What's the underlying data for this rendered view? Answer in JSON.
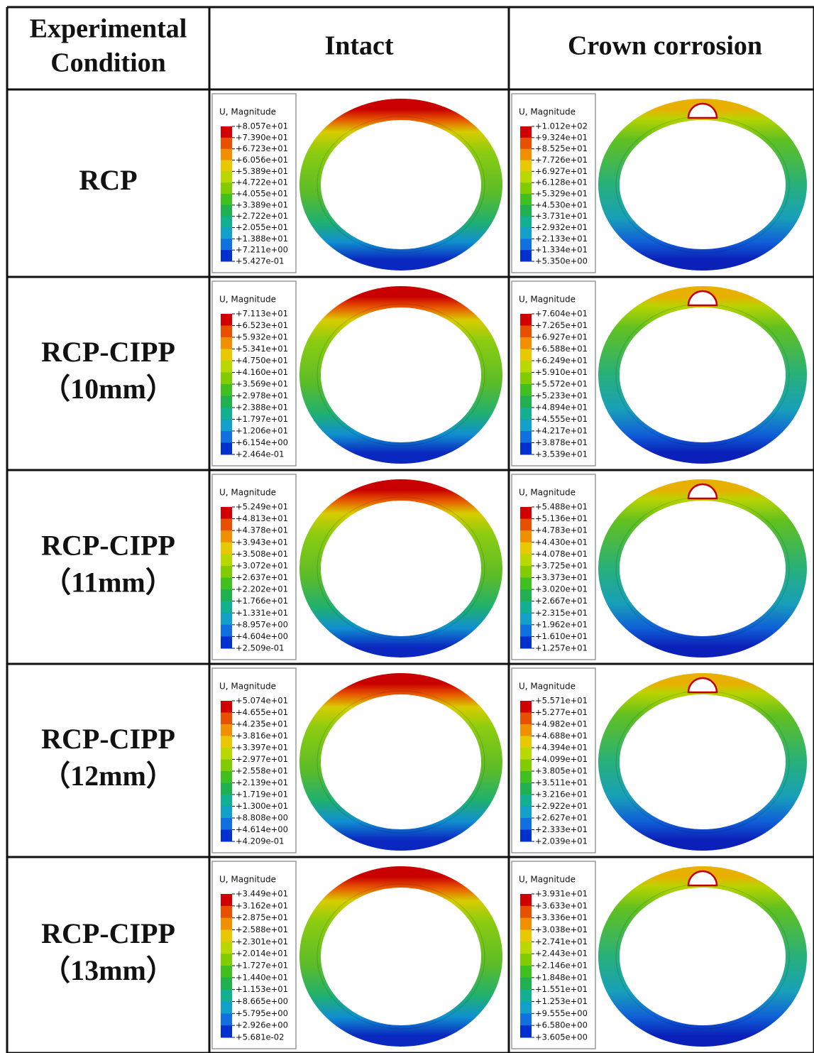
{
  "header": {
    "condition": [
      "Experimental",
      "Condition"
    ],
    "intact": "Intact",
    "crown": "Crown corrosion"
  },
  "rows": [
    {
      "label": [
        "RCP"
      ],
      "intact": {
        "title": "U, Magnitude",
        "values": [
          "+8.057e+01",
          "+7.390e+01",
          "+6.723e+01",
          "+6.056e+01",
          "+5.389e+01",
          "+4.722e+01",
          "+4.055e+01",
          "+3.389e+01",
          "+2.722e+01",
          "+2.055e+01",
          "+1.388e+01",
          "+7.211e+00",
          "+5.427e-01"
        ]
      },
      "crown": {
        "title": "U, Magnitude",
        "values": [
          "+1.012e+02",
          "+9.324e+01",
          "+8.525e+01",
          "+7.726e+01",
          "+6.927e+01",
          "+6.128e+01",
          "+5.329e+01",
          "+4.530e+01",
          "+3.731e+01",
          "+2.932e+01",
          "+2.133e+01",
          "+1.334e+01",
          "+5.350e+00"
        ]
      }
    },
    {
      "label": [
        "RCP-CIPP",
        "（10mm）"
      ],
      "intact": {
        "title": "U, Magnitude",
        "values": [
          "+7.113e+01",
          "+6.523e+01",
          "+5.932e+01",
          "+5.341e+01",
          "+4.750e+01",
          "+4.160e+01",
          "+3.569e+01",
          "+2.978e+01",
          "+2.388e+01",
          "+1.797e+01",
          "+1.206e+01",
          "+6.154e+00",
          "+2.464e-01"
        ]
      },
      "crown": {
        "title": "U, Magnitude",
        "values": [
          "+7.604e+01",
          "+7.265e+01",
          "+6.927e+01",
          "+6.588e+01",
          "+6.249e+01",
          "+5.910e+01",
          "+5.572e+01",
          "+5.233e+01",
          "+4.894e+01",
          "+4.555e+01",
          "+4.217e+01",
          "+3.878e+01",
          "+3.539e+01"
        ]
      }
    },
    {
      "label": [
        "RCP-CIPP",
        "（11mm）"
      ],
      "intact": {
        "title": "U, Magnitude",
        "values": [
          "+5.249e+01",
          "+4.813e+01",
          "+4.378e+01",
          "+3.943e+01",
          "+3.508e+01",
          "+3.072e+01",
          "+2.637e+01",
          "+2.202e+01",
          "+1.766e+01",
          "+1.331e+01",
          "+8.957e+00",
          "+4.604e+00",
          "+2.509e-01"
        ]
      },
      "crown": {
        "title": "U, Magnitude",
        "values": [
          "+5.488e+01",
          "+5.136e+01",
          "+4.783e+01",
          "+4.430e+01",
          "+4.078e+01",
          "+3.725e+01",
          "+3.373e+01",
          "+3.020e+01",
          "+2.667e+01",
          "+2.315e+01",
          "+1.962e+01",
          "+1.610e+01",
          "+1.257e+01"
        ]
      }
    },
    {
      "label": [
        "RCP-CIPP",
        "（12mm）"
      ],
      "intact": {
        "title": "U, Magnitude",
        "values": [
          "+5.074e+01",
          "+4.655e+01",
          "+4.235e+01",
          "+3.816e+01",
          "+3.397e+01",
          "+2.977e+01",
          "+2.558e+01",
          "+2.139e+01",
          "+1.719e+01",
          "+1.300e+01",
          "+8.808e+00",
          "+4.614e+00",
          "+4.209e-01"
        ]
      },
      "crown": {
        "title": "U, Magnitude",
        "values": [
          "+5.571e+01",
          "+5.277e+01",
          "+4.982e+01",
          "+4.688e+01",
          "+4.394e+01",
          "+4.099e+01",
          "+3.805e+01",
          "+3.511e+01",
          "+3.216e+01",
          "+2.922e+01",
          "+2.627e+01",
          "+2.333e+01",
          "+2.039e+01"
        ]
      }
    },
    {
      "label": [
        "RCP-CIPP",
        "（13mm）"
      ],
      "intact": {
        "title": "U, Magnitude",
        "values": [
          "+3.449e+01",
          "+3.162e+01",
          "+2.875e+01",
          "+2.588e+01",
          "+2.301e+01",
          "+2.014e+01",
          "+1.727e+01",
          "+1.440e+01",
          "+1.153e+01",
          "+8.665e+00",
          "+5.795e+00",
          "+2.926e+00",
          "+5.681e-02"
        ]
      },
      "crown": {
        "title": "U, Magnitude",
        "values": [
          "+3.931e+01",
          "+3.633e+01",
          "+3.336e+01",
          "+3.038e+01",
          "+2.741e+01",
          "+2.443e+01",
          "+2.146e+01",
          "+1.848e+01",
          "+1.551e+01",
          "+1.253e+01",
          "+9.555e+00",
          "+6.580e+00",
          "+3.605e+00"
        ]
      }
    }
  ]
}
